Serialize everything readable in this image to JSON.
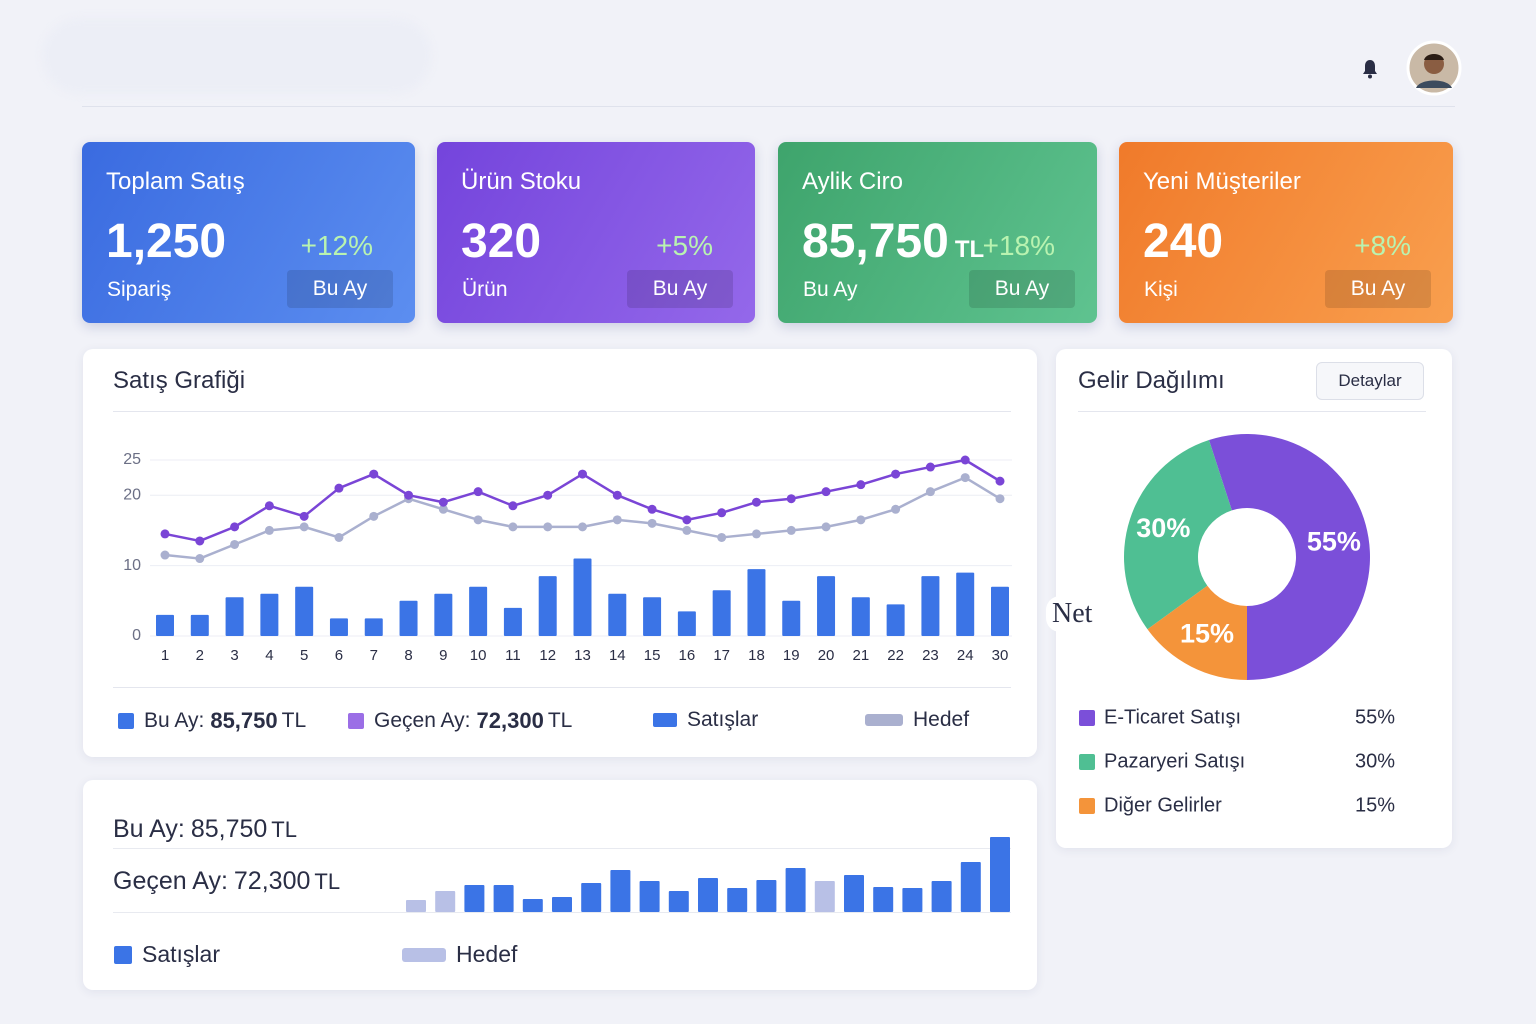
{
  "cards": [
    {
      "title": "Toplam Satış",
      "value": "1,250",
      "sub": "Sipariş",
      "change": "+12%",
      "badge": "Bu Ay"
    },
    {
      "title": "Ürün Stoku",
      "value": "320",
      "sub": "Ürün",
      "change": "+5%",
      "badge": "Bu Ay"
    },
    {
      "title": "Aylik Ciro",
      "value": "85,750",
      "unit": "TL",
      "sub": "Bu Ay",
      "change": "+18%",
      "badge": "Bu Ay"
    },
    {
      "title": "Yeni Müşteriler",
      "value": "240",
      "sub": "Kişi",
      "change": "+8%",
      "badge": "Bu Ay"
    }
  ],
  "chart_data": [
    {
      "type": "bar_line",
      "title": "Satış Grafiği",
      "categories": [
        "1",
        "2",
        "3",
        "4",
        "5",
        "6",
        "7",
        "8",
        "9",
        "10",
        "11",
        "12",
        "13",
        "14",
        "15",
        "16",
        "17",
        "18",
        "19",
        "20",
        "21",
        "22",
        "23",
        "24",
        "30"
      ],
      "ylim": [
        0,
        25
      ],
      "yticks": [
        0,
        10,
        20,
        25
      ],
      "grid": true,
      "series": [
        {
          "name": "Satışlar",
          "type": "bar",
          "color": "#3b74e6",
          "values": [
            3,
            3,
            5.5,
            6,
            7,
            2.5,
            2.5,
            5,
            6,
            7,
            4,
            8.5,
            11,
            6,
            5.5,
            3.5,
            6.5,
            9.5,
            5,
            8.5,
            5.5,
            4.5,
            8.5,
            9,
            7
          ]
        },
        {
          "type": "line",
          "color": "#7a45d6",
          "values": [
            14.5,
            13.5,
            15.5,
            18.5,
            17,
            21,
            23,
            20,
            19,
            20.5,
            18.5,
            20,
            23,
            20,
            18,
            16.5,
            17.5,
            19,
            19.5,
            20.5,
            21.5,
            23,
            24,
            25,
            22
          ]
        },
        {
          "name": "Hedef",
          "type": "line",
          "color": "#aab0cf",
          "values": [
            11.5,
            11,
            13,
            15,
            15.5,
            14,
            17,
            19.5,
            18,
            16.5,
            15.5,
            15.5,
            15.5,
            16.5,
            16,
            15,
            14,
            14.5,
            15,
            15.5,
            16.5,
            18,
            20.5,
            22.5,
            19.5
          ]
        }
      ],
      "legend": [
        {
          "label": "Bu Ay:",
          "value": "85,750",
          "unit": "TL",
          "color": "#3b74e6"
        },
        {
          "label": "Geçen Ay:",
          "value": "72,300",
          "unit": "TL",
          "color": "#9b6ee6"
        }
      ]
    },
    {
      "type": "bar",
      "summary": [
        {
          "label": "Bu Ay:",
          "value": "85,750",
          "unit": "TL"
        },
        {
          "label": "Geçen Ay:",
          "value": "72,300",
          "unit": "TL"
        }
      ],
      "series": [
        {
          "name": "Satışlar",
          "color": "#3b74e6",
          "values": [
            null,
            null,
            27,
            27,
            13,
            15,
            29,
            42,
            31,
            21,
            34,
            24,
            32,
            44,
            null,
            37,
            25,
            24,
            31,
            50,
            75
          ]
        },
        {
          "name": "Hedef",
          "color": "#b8c0e6",
          "values": [
            12,
            21,
            null,
            null,
            null,
            null,
            null,
            null,
            null,
            null,
            null,
            null,
            null,
            null,
            31,
            null,
            null,
            null,
            null,
            null,
            null
          ]
        }
      ]
    },
    {
      "type": "donut",
      "title": "Gelir Dağılımı",
      "button": "Detaylar",
      "categories": [
        "E-Ticaret Satışı",
        "Pazaryeri Satışı",
        "Diğer Gelirler"
      ],
      "values": [
        55,
        30,
        15
      ],
      "value_labels": [
        "55%",
        "30%",
        "15%"
      ],
      "colors": [
        "#7b4fd9",
        "#4fbf93",
        "#f4943a"
      ],
      "annotation": "Net"
    }
  ]
}
